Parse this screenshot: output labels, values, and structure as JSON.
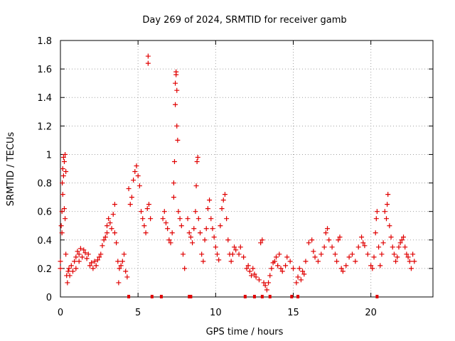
{
  "chart_data": {
    "type": "scatter",
    "title": "Day 269 of 2024, SRMTID for receiver gamb",
    "xlabel": "GPS time / hours",
    "ylabel": "SRMTID / TECUs",
    "xlim": [
      0,
      24
    ],
    "ylim": [
      0,
      1.8
    ],
    "xticks": [
      0,
      5,
      10,
      15,
      20
    ],
    "yticks": [
      0,
      0.2,
      0.4,
      0.6,
      0.8,
      1,
      1.2,
      1.4,
      1.6,
      1.8
    ],
    "ytick_labels": [
      "0",
      "0.2",
      "0.4",
      "0.6",
      "0.8",
      "1",
      "1.2",
      "1.4",
      "1.6",
      "1.8"
    ],
    "grid": true,
    "marker": "+",
    "color": "#e00000",
    "series": [
      {
        "name": "SRMTID",
        "points": [
          [
            0.0,
            0.2
          ],
          [
            0.0,
            0.25
          ],
          [
            0.05,
            0.5
          ],
          [
            0.1,
            0.6
          ],
          [
            0.1,
            0.45
          ],
          [
            0.12,
            0.8
          ],
          [
            0.15,
            0.9
          ],
          [
            0.15,
            0.72
          ],
          [
            0.2,
            0.98
          ],
          [
            0.2,
            0.85
          ],
          [
            0.25,
            0.95
          ],
          [
            0.25,
            0.62
          ],
          [
            0.3,
            1.0
          ],
          [
            0.3,
            0.55
          ],
          [
            0.35,
            0.88
          ],
          [
            0.35,
            0.3
          ],
          [
            0.4,
            0.15
          ],
          [
            0.45,
            0.1
          ],
          [
            0.5,
            0.18
          ],
          [
            0.55,
            0.2
          ],
          [
            0.6,
            0.15
          ],
          [
            0.7,
            0.22
          ],
          [
            0.8,
            0.18
          ],
          [
            0.9,
            0.25
          ],
          [
            1.0,
            0.28
          ],
          [
            1.0,
            0.2
          ],
          [
            1.1,
            0.32
          ],
          [
            1.2,
            0.3
          ],
          [
            1.2,
            0.25
          ],
          [
            1.3,
            0.34
          ],
          [
            1.4,
            0.28
          ],
          [
            1.5,
            0.33
          ],
          [
            1.6,
            0.31
          ],
          [
            1.7,
            0.27
          ],
          [
            1.8,
            0.3
          ],
          [
            1.9,
            0.22
          ],
          [
            2.0,
            0.24
          ],
          [
            2.1,
            0.2
          ],
          [
            2.2,
            0.25
          ],
          [
            2.3,
            0.22
          ],
          [
            2.4,
            0.26
          ],
          [
            2.5,
            0.28
          ],
          [
            2.6,
            0.3
          ],
          [
            2.7,
            0.36
          ],
          [
            2.8,
            0.4
          ],
          [
            2.9,
            0.42
          ],
          [
            3.0,
            0.45
          ],
          [
            3.0,
            0.5
          ],
          [
            3.1,
            0.55
          ],
          [
            3.2,
            0.52
          ],
          [
            3.3,
            0.48
          ],
          [
            3.4,
            0.58
          ],
          [
            3.5,
            0.65
          ],
          [
            3.5,
            0.45
          ],
          [
            3.6,
            0.38
          ],
          [
            3.7,
            0.25
          ],
          [
            3.75,
            0.1
          ],
          [
            3.8,
            0.2
          ],
          [
            3.9,
            0.22
          ],
          [
            4.0,
            0.25
          ],
          [
            4.1,
            0.3
          ],
          [
            4.2,
            0.18
          ],
          [
            4.3,
            0.14
          ],
          [
            4.4,
            0.76
          ],
          [
            4.5,
            0.65
          ],
          [
            4.6,
            0.7
          ],
          [
            4.7,
            0.82
          ],
          [
            4.8,
            0.88
          ],
          [
            4.9,
            0.92
          ],
          [
            5.0,
            0.85
          ],
          [
            5.1,
            0.78
          ],
          [
            5.2,
            0.6
          ],
          [
            5.3,
            0.55
          ],
          [
            5.4,
            0.5
          ],
          [
            5.5,
            0.45
          ],
          [
            5.6,
            0.62
          ],
          [
            5.65,
            1.69
          ],
          [
            5.65,
            1.64
          ],
          [
            5.7,
            0.65
          ],
          [
            5.8,
            0.55
          ],
          [
            6.6,
            0.55
          ],
          [
            6.7,
            0.6
          ],
          [
            6.8,
            0.52
          ],
          [
            6.9,
            0.48
          ],
          [
            7.0,
            0.4
          ],
          [
            7.1,
            0.38
          ],
          [
            7.2,
            0.45
          ],
          [
            7.3,
            0.8
          ],
          [
            7.3,
            0.7
          ],
          [
            7.35,
            0.95
          ],
          [
            7.4,
            1.5
          ],
          [
            7.4,
            1.35
          ],
          [
            7.45,
            1.56
          ],
          [
            7.45,
            1.58
          ],
          [
            7.5,
            1.45
          ],
          [
            7.5,
            1.2
          ],
          [
            7.55,
            1.1
          ],
          [
            7.6,
            0.6
          ],
          [
            7.7,
            0.55
          ],
          [
            7.8,
            0.5
          ],
          [
            7.9,
            0.3
          ],
          [
            8.0,
            0.2
          ],
          [
            8.2,
            0.55
          ],
          [
            8.3,
            0.45
          ],
          [
            8.4,
            0.42
          ],
          [
            8.5,
            0.38
          ],
          [
            8.6,
            0.48
          ],
          [
            8.7,
            0.6
          ],
          [
            8.75,
            0.78
          ],
          [
            8.8,
            0.95
          ],
          [
            8.85,
            0.98
          ],
          [
            8.9,
            0.55
          ],
          [
            9.0,
            0.45
          ],
          [
            9.1,
            0.3
          ],
          [
            9.2,
            0.25
          ],
          [
            9.3,
            0.4
          ],
          [
            9.4,
            0.48
          ],
          [
            9.5,
            0.62
          ],
          [
            9.6,
            0.68
          ],
          [
            9.7,
            0.55
          ],
          [
            9.8,
            0.48
          ],
          [
            9.9,
            0.42
          ],
          [
            10.0,
            0.35
          ],
          [
            10.1,
            0.3
          ],
          [
            10.2,
            0.26
          ],
          [
            10.3,
            0.5
          ],
          [
            10.4,
            0.62
          ],
          [
            10.5,
            0.68
          ],
          [
            10.6,
            0.72
          ],
          [
            10.7,
            0.55
          ],
          [
            10.8,
            0.4
          ],
          [
            10.9,
            0.3
          ],
          [
            11.0,
            0.25
          ],
          [
            11.1,
            0.3
          ],
          [
            11.2,
            0.35
          ],
          [
            11.3,
            0.33
          ],
          [
            11.5,
            0.3
          ],
          [
            11.6,
            0.35
          ],
          [
            11.8,
            0.28
          ],
          [
            12.0,
            0.2
          ],
          [
            12.1,
            0.22
          ],
          [
            12.2,
            0.18
          ],
          [
            12.3,
            0.15
          ],
          [
            12.4,
            0.2
          ],
          [
            12.5,
            0.16
          ],
          [
            12.6,
            0.14
          ],
          [
            12.8,
            0.12
          ],
          [
            12.9,
            0.38
          ],
          [
            13.0,
            0.4
          ],
          [
            13.1,
            0.1
          ],
          [
            13.2,
            0.08
          ],
          [
            13.3,
            0.05
          ],
          [
            13.4,
            0.1
          ],
          [
            13.5,
            0.15
          ],
          [
            13.6,
            0.2
          ],
          [
            13.7,
            0.24
          ],
          [
            13.8,
            0.25
          ],
          [
            13.9,
            0.28
          ],
          [
            14.0,
            0.22
          ],
          [
            14.1,
            0.3
          ],
          [
            14.2,
            0.2
          ],
          [
            14.3,
            0.18
          ],
          [
            14.5,
            0.22
          ],
          [
            14.6,
            0.28
          ],
          [
            14.8,
            0.25
          ],
          [
            15.0,
            0.2
          ],
          [
            15.2,
            0.1
          ],
          [
            15.3,
            0.14
          ],
          [
            15.4,
            0.2
          ],
          [
            15.5,
            0.12
          ],
          [
            15.6,
            0.18
          ],
          [
            15.7,
            0.16
          ],
          [
            15.8,
            0.25
          ],
          [
            16.0,
            0.38
          ],
          [
            16.2,
            0.4
          ],
          [
            16.3,
            0.32
          ],
          [
            16.4,
            0.28
          ],
          [
            16.6,
            0.25
          ],
          [
            16.8,
            0.3
          ],
          [
            17.0,
            0.35
          ],
          [
            17.1,
            0.45
          ],
          [
            17.2,
            0.48
          ],
          [
            17.3,
            0.4
          ],
          [
            17.5,
            0.35
          ],
          [
            17.7,
            0.3
          ],
          [
            17.8,
            0.25
          ],
          [
            17.9,
            0.4
          ],
          [
            18.0,
            0.42
          ],
          [
            18.1,
            0.2
          ],
          [
            18.2,
            0.18
          ],
          [
            18.4,
            0.22
          ],
          [
            18.6,
            0.28
          ],
          [
            18.8,
            0.3
          ],
          [
            19.0,
            0.25
          ],
          [
            19.2,
            0.35
          ],
          [
            19.4,
            0.42
          ],
          [
            19.5,
            0.38
          ],
          [
            19.6,
            0.36
          ],
          [
            19.8,
            0.3
          ],
          [
            20.0,
            0.22
          ],
          [
            20.1,
            0.2
          ],
          [
            20.2,
            0.28
          ],
          [
            20.3,
            0.45
          ],
          [
            20.35,
            0.55
          ],
          [
            20.4,
            0.6
          ],
          [
            20.5,
            0.35
          ],
          [
            20.6,
            0.22
          ],
          [
            20.7,
            0.3
          ],
          [
            20.8,
            0.38
          ],
          [
            20.9,
            0.6
          ],
          [
            21.0,
            0.55
          ],
          [
            21.05,
            0.65
          ],
          [
            21.1,
            0.72
          ],
          [
            21.2,
            0.5
          ],
          [
            21.3,
            0.42
          ],
          [
            21.4,
            0.35
          ],
          [
            21.5,
            0.3
          ],
          [
            21.6,
            0.25
          ],
          [
            21.7,
            0.28
          ],
          [
            21.8,
            0.35
          ],
          [
            21.9,
            0.38
          ],
          [
            22.0,
            0.4
          ],
          [
            22.1,
            0.42
          ],
          [
            22.2,
            0.35
          ],
          [
            22.3,
            0.3
          ],
          [
            22.4,
            0.28
          ],
          [
            22.5,
            0.25
          ],
          [
            22.6,
            0.2
          ],
          [
            22.7,
            0.3
          ],
          [
            22.8,
            0.25
          ]
        ]
      }
    ],
    "zero_markers_x": [
      4.4,
      5.9,
      6.5,
      8.3,
      8.4,
      11.9,
      12.5,
      13.0,
      13.5,
      14.9,
      15.3,
      20.4
    ]
  }
}
